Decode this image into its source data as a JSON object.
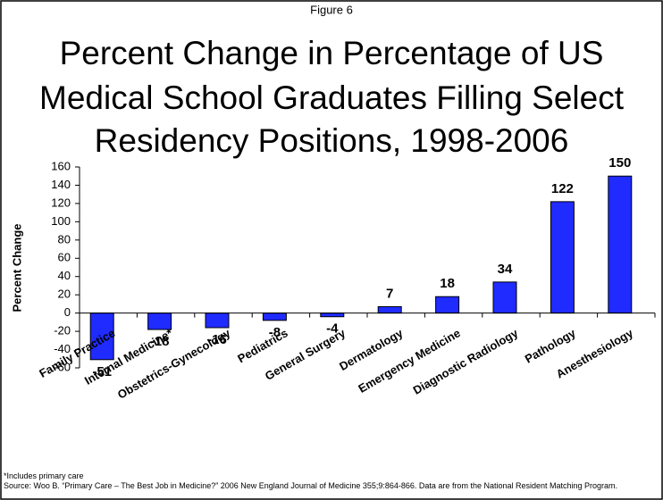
{
  "chart_data": {
    "type": "bar",
    "figure_label": "Figure 6",
    "title_lines": [
      "Percent Change in Percentage of US",
      "Medical School Graduates Filling Select",
      "Residency Positions, 1998-2006"
    ],
    "y_label": "Percent Change",
    "categories": [
      "Family Practice",
      "Internal Medicine*",
      "Obstetrics-Gynecology",
      "Pediatrics",
      "General Surgery",
      "Dermatology",
      "Emergency Medicine",
      "Diagnostic Radiology",
      "Pathology",
      "Anesthesiology"
    ],
    "values": [
      -51,
      -18,
      -16,
      -8,
      -4,
      7,
      18,
      34,
      122,
      150
    ],
    "color": "#1f2bff",
    "ylim": [
      -60,
      160
    ],
    "yticks": [
      -60,
      -40,
      -20,
      0,
      20,
      40,
      60,
      80,
      100,
      120,
      140,
      160
    ],
    "grid": false,
    "footnote": "*Includes primary care",
    "source": "Source:  Woo B. “Primary Care – The Best Job in Medicine?” 2006 New England Journal of Medicine 355;9:864-866.  Data are from the National Resident Matching Program."
  }
}
